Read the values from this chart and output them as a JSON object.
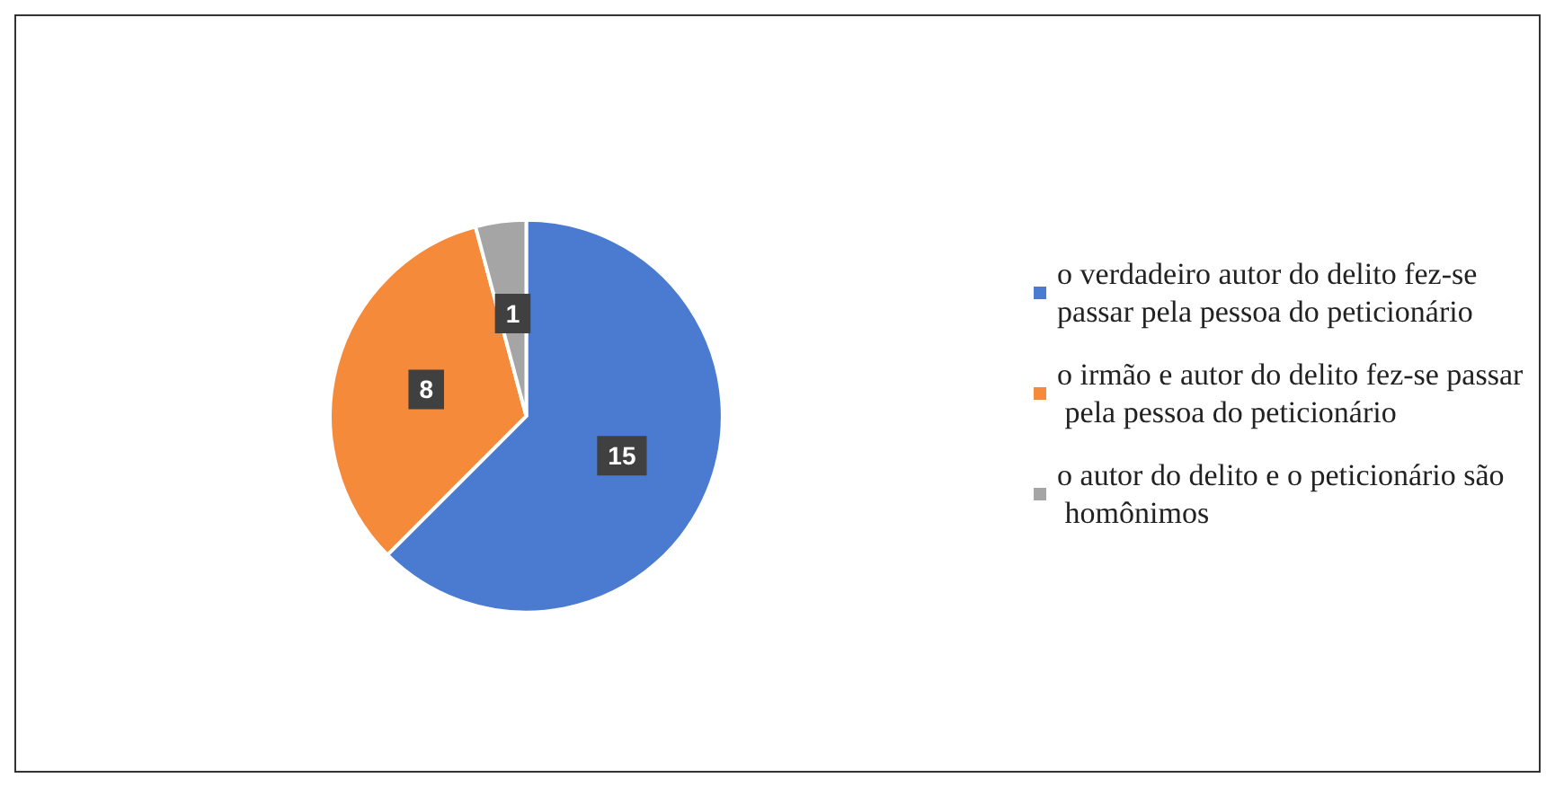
{
  "chart_data": {
    "type": "pie",
    "categories": [
      "o verdadeiro autor do delito fez-se passar pela pessoa do peticionário",
      "o irmão e autor do delito fez-se passar pela pessoa do peticionário",
      "o autor do delito e o peticionário são homônimos"
    ],
    "values": [
      15,
      8,
      1
    ],
    "colors": [
      "#4a7bd0",
      "#f58a3a",
      "#a5a5a5"
    ],
    "data_labels": true,
    "legend": "right"
  }
}
